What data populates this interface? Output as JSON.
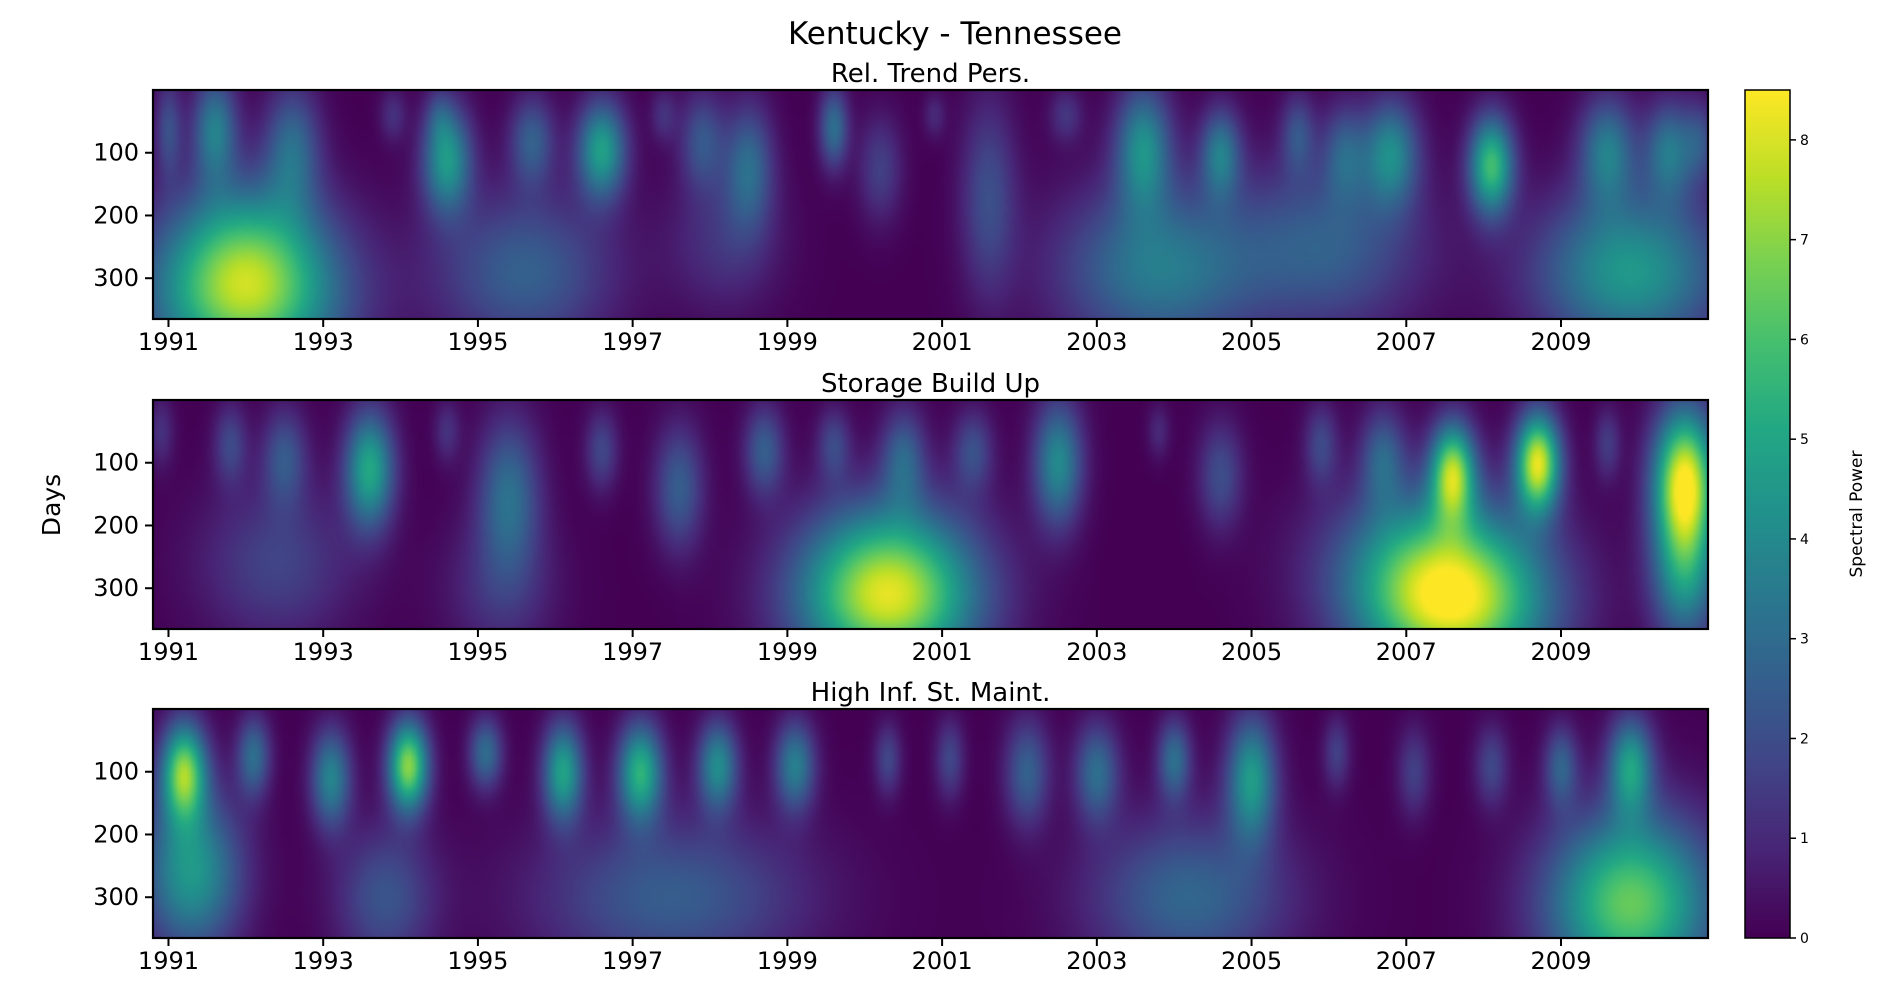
{
  "figure": {
    "suptitle": "Kentucky - Tennessee",
    "shared_ylabel": "Days"
  },
  "colorbar": {
    "label": "Spectral Power",
    "min": 0,
    "max": 8.5,
    "ticks": [
      0,
      1,
      2,
      3,
      4,
      5,
      6,
      7,
      8
    ],
    "colormap": "viridis"
  },
  "chart_data": [
    {
      "type": "heatmap",
      "title": "Rel. Trend Pers.",
      "xlim": [
        1990.8,
        2010.9
      ],
      "ylim": [
        365,
        0
      ],
      "x_ticks": [
        "1991",
        "1993",
        "1995",
        "1997",
        "1999",
        "2001",
        "2003",
        "2005",
        "2007",
        "2009"
      ],
      "y_ticks": [
        "100",
        "200",
        "300"
      ],
      "blobs": [
        {
          "x": 1991.0,
          "y": 60,
          "dx": 0.12,
          "dy": 55,
          "v": 2.0
        },
        {
          "x": 1991.6,
          "y": 60,
          "dx": 0.2,
          "dy": 60,
          "v": 3.5
        },
        {
          "x": 1992.6,
          "y": 90,
          "dx": 0.25,
          "dy": 70,
          "v": 2.8
        },
        {
          "x": 1992.0,
          "y": 330,
          "dx": 0.85,
          "dy": 90,
          "v": 6.7
        },
        {
          "x": 1992.0,
          "y": 230,
          "dx": 0.7,
          "dy": 80,
          "v": 2.3
        },
        {
          "x": 1993.9,
          "y": 40,
          "dx": 0.12,
          "dy": 30,
          "v": 1.2
        },
        {
          "x": 1994.5,
          "y": 40,
          "dx": 0.12,
          "dy": 30,
          "v": 1.0
        },
        {
          "x": 1994.6,
          "y": 110,
          "dx": 0.22,
          "dy": 60,
          "v": 4.5
        },
        {
          "x": 1995.7,
          "y": 80,
          "dx": 0.2,
          "dy": 50,
          "v": 2.5
        },
        {
          "x": 1996.6,
          "y": 95,
          "dx": 0.22,
          "dy": 55,
          "v": 4.7
        },
        {
          "x": 1995.6,
          "y": 290,
          "dx": 0.8,
          "dy": 90,
          "v": 2.6
        },
        {
          "x": 1997.4,
          "y": 40,
          "dx": 0.12,
          "dy": 30,
          "v": 1.2
        },
        {
          "x": 1997.9,
          "y": 80,
          "dx": 0.2,
          "dy": 55,
          "v": 2.2
        },
        {
          "x": 1998.5,
          "y": 120,
          "dx": 0.22,
          "dy": 70,
          "v": 2.8
        },
        {
          "x": 1998.2,
          "y": 240,
          "dx": 0.5,
          "dy": 80,
          "v": 1.3
        },
        {
          "x": 1999.6,
          "y": 60,
          "dx": 0.13,
          "dy": 45,
          "v": 3.1
        },
        {
          "x": 2000.2,
          "y": 125,
          "dx": 0.2,
          "dy": 60,
          "v": 1.6
        },
        {
          "x": 2000.9,
          "y": 40,
          "dx": 0.1,
          "dy": 25,
          "v": 1.0
        },
        {
          "x": 2001.6,
          "y": 170,
          "dx": 0.25,
          "dy": 110,
          "v": 2.0
        },
        {
          "x": 2002.6,
          "y": 40,
          "dx": 0.15,
          "dy": 30,
          "v": 1.3
        },
        {
          "x": 2003.6,
          "y": 90,
          "dx": 0.25,
          "dy": 70,
          "v": 4.0
        },
        {
          "x": 2003.8,
          "y": 285,
          "dx": 0.9,
          "dy": 95,
          "v": 3.5
        },
        {
          "x": 2004.6,
          "y": 100,
          "dx": 0.18,
          "dy": 50,
          "v": 3.3
        },
        {
          "x": 2005.6,
          "y": 70,
          "dx": 0.15,
          "dy": 45,
          "v": 2.0
        },
        {
          "x": 2006.2,
          "y": 100,
          "dx": 0.2,
          "dy": 55,
          "v": 2.2
        },
        {
          "x": 2006.8,
          "y": 100,
          "dx": 0.25,
          "dy": 60,
          "v": 3.8
        },
        {
          "x": 2006.0,
          "y": 250,
          "dx": 0.85,
          "dy": 95,
          "v": 2.5
        },
        {
          "x": 2008.1,
          "y": 120,
          "dx": 0.2,
          "dy": 55,
          "v": 5.8
        },
        {
          "x": 2009.6,
          "y": 95,
          "dx": 0.25,
          "dy": 60,
          "v": 3.4
        },
        {
          "x": 2010.4,
          "y": 95,
          "dx": 0.22,
          "dy": 55,
          "v": 3.2
        },
        {
          "x": 2009.9,
          "y": 290,
          "dx": 0.85,
          "dy": 90,
          "v": 4.5
        },
        {
          "x": 2010.8,
          "y": 80,
          "dx": 0.15,
          "dy": 45,
          "v": 1.8
        }
      ]
    },
    {
      "type": "heatmap",
      "title": "Storage Build Up",
      "xlim": [
        1990.8,
        2010.9
      ],
      "ylim": [
        365,
        0
      ],
      "x_ticks": [
        "1991",
        "1993",
        "1995",
        "1997",
        "1999",
        "2001",
        "2003",
        "2005",
        "2007",
        "2009"
      ],
      "y_ticks": [
        "100",
        "200",
        "300"
      ],
      "blobs": [
        {
          "x": 1990.9,
          "y": 50,
          "dx": 0.12,
          "dy": 40,
          "v": 1.2
        },
        {
          "x": 1991.8,
          "y": 70,
          "dx": 0.15,
          "dy": 45,
          "v": 1.8
        },
        {
          "x": 1992.5,
          "y": 90,
          "dx": 0.2,
          "dy": 55,
          "v": 2.2
        },
        {
          "x": 1992.4,
          "y": 260,
          "dx": 0.7,
          "dy": 90,
          "v": 1.7
        },
        {
          "x": 1993.6,
          "y": 110,
          "dx": 0.22,
          "dy": 65,
          "v": 5.0
        },
        {
          "x": 1994.6,
          "y": 50,
          "dx": 0.12,
          "dy": 35,
          "v": 1.2
        },
        {
          "x": 1995.4,
          "y": 150,
          "dx": 0.28,
          "dy": 85,
          "v": 3.0
        },
        {
          "x": 1995.3,
          "y": 300,
          "dx": 0.5,
          "dy": 80,
          "v": 1.3
        },
        {
          "x": 1996.6,
          "y": 80,
          "dx": 0.15,
          "dy": 45,
          "v": 1.8
        },
        {
          "x": 1997.6,
          "y": 140,
          "dx": 0.22,
          "dy": 70,
          "v": 2.5
        },
        {
          "x": 1998.7,
          "y": 80,
          "dx": 0.18,
          "dy": 50,
          "v": 2.5
        },
        {
          "x": 1999.6,
          "y": 70,
          "dx": 0.15,
          "dy": 40,
          "v": 1.8
        },
        {
          "x": 2000.5,
          "y": 90,
          "dx": 0.2,
          "dy": 55,
          "v": 2.5
        },
        {
          "x": 2001.4,
          "y": 80,
          "dx": 0.18,
          "dy": 45,
          "v": 2.0
        },
        {
          "x": 2000.3,
          "y": 330,
          "dx": 0.8,
          "dy": 80,
          "v": 6.5
        },
        {
          "x": 2000.3,
          "y": 240,
          "dx": 0.8,
          "dy": 80,
          "v": 2.8
        },
        {
          "x": 2002.5,
          "y": 100,
          "dx": 0.22,
          "dy": 70,
          "v": 4.0
        },
        {
          "x": 2003.8,
          "y": 50,
          "dx": 0.1,
          "dy": 30,
          "v": 1.0
        },
        {
          "x": 2004.6,
          "y": 120,
          "dx": 0.2,
          "dy": 60,
          "v": 2.0
        },
        {
          "x": 2005.9,
          "y": 70,
          "dx": 0.15,
          "dy": 45,
          "v": 1.8
        },
        {
          "x": 2006.7,
          "y": 90,
          "dx": 0.2,
          "dy": 55,
          "v": 2.5
        },
        {
          "x": 2007.6,
          "y": 115,
          "dx": 0.2,
          "dy": 55,
          "v": 6.8
        },
        {
          "x": 2008.7,
          "y": 100,
          "dx": 0.2,
          "dy": 55,
          "v": 8.0
        },
        {
          "x": 2007.6,
          "y": 330,
          "dx": 0.85,
          "dy": 85,
          "v": 7.3
        },
        {
          "x": 2007.3,
          "y": 240,
          "dx": 0.9,
          "dy": 85,
          "v": 3.0
        },
        {
          "x": 2009.6,
          "y": 70,
          "dx": 0.12,
          "dy": 40,
          "v": 1.5
        },
        {
          "x": 2010.6,
          "y": 130,
          "dx": 0.28,
          "dy": 80,
          "v": 8.4
        },
        {
          "x": 2010.6,
          "y": 280,
          "dx": 0.3,
          "dy": 80,
          "v": 4.0
        }
      ]
    },
    {
      "type": "heatmap",
      "title": "High Inf. St. Maint.",
      "xlim": [
        1990.8,
        2010.9
      ],
      "ylim": [
        365,
        0
      ],
      "x_ticks": [
        "1991",
        "1993",
        "1995",
        "1997",
        "1999",
        "2001",
        "2003",
        "2005",
        "2007",
        "2009"
      ],
      "y_ticks": [
        "100",
        "200",
        "300"
      ],
      "blobs": [
        {
          "x": 1991.2,
          "y": 100,
          "dx": 0.2,
          "dy": 55,
          "v": 6.6
        },
        {
          "x": 1991.3,
          "y": 260,
          "dx": 0.45,
          "dy": 90,
          "v": 4.5
        },
        {
          "x": 1992.1,
          "y": 75,
          "dx": 0.15,
          "dy": 45,
          "v": 3.0
        },
        {
          "x": 1993.1,
          "y": 110,
          "dx": 0.18,
          "dy": 55,
          "v": 3.8
        },
        {
          "x": 1994.1,
          "y": 90,
          "dx": 0.18,
          "dy": 50,
          "v": 7.0
        },
        {
          "x": 1993.8,
          "y": 300,
          "dx": 0.45,
          "dy": 80,
          "v": 2.2
        },
        {
          "x": 1995.1,
          "y": 70,
          "dx": 0.15,
          "dy": 40,
          "v": 3.0
        },
        {
          "x": 1996.1,
          "y": 100,
          "dx": 0.18,
          "dy": 55,
          "v": 4.8
        },
        {
          "x": 1997.1,
          "y": 100,
          "dx": 0.2,
          "dy": 55,
          "v": 5.3
        },
        {
          "x": 1998.1,
          "y": 90,
          "dx": 0.18,
          "dy": 50,
          "v": 4.0
        },
        {
          "x": 1999.1,
          "y": 90,
          "dx": 0.18,
          "dy": 50,
          "v": 3.6
        },
        {
          "x": 1997.5,
          "y": 300,
          "dx": 1.2,
          "dy": 90,
          "v": 2.5
        },
        {
          "x": 2000.3,
          "y": 80,
          "dx": 0.12,
          "dy": 40,
          "v": 1.8
        },
        {
          "x": 2001.1,
          "y": 80,
          "dx": 0.13,
          "dy": 45,
          "v": 1.8
        },
        {
          "x": 2002.1,
          "y": 100,
          "dx": 0.2,
          "dy": 60,
          "v": 2.6
        },
        {
          "x": 2003.0,
          "y": 100,
          "dx": 0.2,
          "dy": 55,
          "v": 3.0
        },
        {
          "x": 2004.0,
          "y": 80,
          "dx": 0.15,
          "dy": 45,
          "v": 3.0
        },
        {
          "x": 2005.0,
          "y": 110,
          "dx": 0.22,
          "dy": 70,
          "v": 4.5
        },
        {
          "x": 2004.2,
          "y": 300,
          "dx": 0.9,
          "dy": 90,
          "v": 2.8
        },
        {
          "x": 2006.1,
          "y": 70,
          "dx": 0.12,
          "dy": 40,
          "v": 1.6
        },
        {
          "x": 2007.1,
          "y": 100,
          "dx": 0.15,
          "dy": 50,
          "v": 1.6
        },
        {
          "x": 2008.1,
          "y": 90,
          "dx": 0.15,
          "dy": 45,
          "v": 1.8
        },
        {
          "x": 2009.0,
          "y": 90,
          "dx": 0.15,
          "dy": 45,
          "v": 2.5
        },
        {
          "x": 2009.9,
          "y": 90,
          "dx": 0.2,
          "dy": 55,
          "v": 4.5
        },
        {
          "x": 2009.9,
          "y": 310,
          "dx": 0.75,
          "dy": 100,
          "v": 6.5
        }
      ]
    }
  ]
}
